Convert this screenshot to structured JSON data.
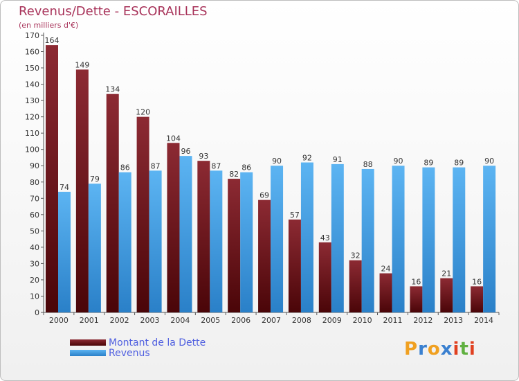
{
  "header": {
    "title": "Revenus/Dette - ESCORAILLES",
    "subtitle": "(en milliers d'€)"
  },
  "chart_data": {
    "type": "bar",
    "categories": [
      "2000",
      "2001",
      "2002",
      "2003",
      "2004",
      "2005",
      "2006",
      "2007",
      "2008",
      "2009",
      "2010",
      "2011",
      "2012",
      "2013",
      "2014"
    ],
    "series": [
      {
        "name": "Montant de la Dette",
        "color": "#7a1e25",
        "values": [
          164,
          149,
          134,
          120,
          104,
          93,
          82,
          69,
          57,
          43,
          32,
          24,
          16,
          21,
          16
        ]
      },
      {
        "name": "Revenus",
        "color": "#3d9ee6",
        "values": [
          74,
          79,
          86,
          87,
          96,
          87,
          86,
          90,
          92,
          91,
          88,
          90,
          89,
          89,
          90
        ]
      }
    ],
    "ylim": [
      0,
      170
    ],
    "ytick_step": 10,
    "grid": false,
    "legend": "bottom-left"
  },
  "legend": {
    "items": [
      {
        "label": "Montant de la Dette",
        "color": "#7a1e25"
      },
      {
        "label": "Revenus",
        "color": "#3d9ee6"
      }
    ]
  },
  "brand": {
    "logo_letters": [
      "P",
      "r",
      "o",
      "x",
      "i",
      "t",
      "i"
    ],
    "logo_colors": [
      "#f0a020",
      "#3a80d0",
      "#f0a020",
      "#3a80d0",
      "#e04020",
      "#60b040",
      "#e04020"
    ]
  }
}
